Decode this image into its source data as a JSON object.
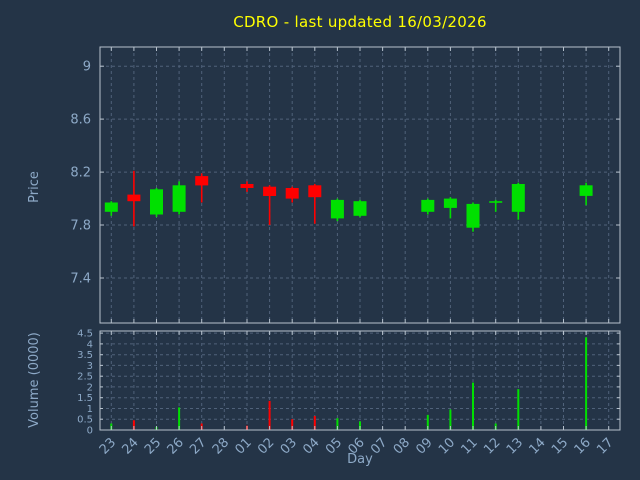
{
  "title": "CDRO - last updated 16/03/2026",
  "colors": {
    "background": "#243447",
    "title": "#ffff00",
    "axis_text": "#8da9c7",
    "grid": "#50627a",
    "border": "#b7c2cd",
    "up": "#00e000",
    "down": "#ff0000"
  },
  "chart_data": {
    "type": "candlestick",
    "title": "CDRO - last updated 16/03/2026",
    "xlabel": "Day",
    "grid": true,
    "legend": false,
    "price_axis": {
      "label": "Price",
      "min": 7.06,
      "max": 9.145,
      "ticks": [
        7.4,
        7.8,
        8.2,
        8.6,
        9
      ],
      "tick_labels": [
        "7.4",
        "7.8",
        "8.2",
        "8.6",
        "9"
      ]
    },
    "volume_axis": {
      "label": "Volume (0000)",
      "min": 0,
      "max": 4.5,
      "ticks": [
        0,
        0.5,
        1,
        1.5,
        2,
        2.5,
        3,
        3.5,
        4,
        4.5
      ],
      "tick_labels": [
        "0",
        "0.5",
        "1",
        "1.5",
        "2",
        "2.5",
        "3",
        "3.5",
        "4",
        "4.5"
      ]
    },
    "categories": [
      "23",
      "24",
      "25",
      "26",
      "27",
      "28",
      "01",
      "02",
      "03",
      "04",
      "05",
      "06",
      "07",
      "08",
      "09",
      "10",
      "11",
      "12",
      "13",
      "14",
      "15",
      "16",
      "17"
    ],
    "candles": [
      {
        "day": "23",
        "open": 7.9,
        "high": 7.98,
        "low": 7.87,
        "close": 7.97,
        "volume": 0.3
      },
      {
        "day": "24",
        "open": 8.03,
        "high": 8.21,
        "low": 7.79,
        "close": 7.98,
        "volume": 0.45
      },
      {
        "day": "25",
        "open": 7.88,
        "high": 8.08,
        "low": 7.86,
        "close": 8.07,
        "volume": 0.15
      },
      {
        "day": "26",
        "open": 7.9,
        "high": 8.13,
        "low": 7.88,
        "close": 8.1,
        "volume": 1.05
      },
      {
        "day": "27",
        "open": 8.17,
        "high": 8.19,
        "low": 7.97,
        "close": 8.1,
        "volume": 0.3
      },
      {
        "day": "28",
        "open": null,
        "high": null,
        "low": null,
        "close": null,
        "volume": null
      },
      {
        "day": "01",
        "open": 8.11,
        "high": 8.13,
        "low": 8.05,
        "close": 8.08,
        "volume": 0.2
      },
      {
        "day": "02",
        "open": 8.09,
        "high": 8.1,
        "low": 7.8,
        "close": 8.02,
        "volume": 1.35
      },
      {
        "day": "03",
        "open": 8.08,
        "high": 8.09,
        "low": 7.97,
        "close": 8.0,
        "volume": 0.5
      },
      {
        "day": "04",
        "open": 8.1,
        "high": 8.11,
        "low": 7.81,
        "close": 8.01,
        "volume": 0.65
      },
      {
        "day": "05",
        "open": 7.85,
        "high": 8.0,
        "low": 7.83,
        "close": 7.99,
        "volume": 0.55
      },
      {
        "day": "06",
        "open": 7.87,
        "high": 7.99,
        "low": 7.86,
        "close": 7.98,
        "volume": 0.4
      },
      {
        "day": "07",
        "open": null,
        "high": null,
        "low": null,
        "close": null,
        "volume": null
      },
      {
        "day": "08",
        "open": null,
        "high": null,
        "low": null,
        "close": null,
        "volume": null
      },
      {
        "day": "09",
        "open": 7.9,
        "high": 8.0,
        "low": 7.88,
        "close": 7.99,
        "volume": 0.7
      },
      {
        "day": "10",
        "open": 7.93,
        "high": 8.01,
        "low": 7.85,
        "close": 8.0,
        "volume": 0.95
      },
      {
        "day": "11",
        "open": 7.78,
        "high": 7.97,
        "low": 7.75,
        "close": 7.96,
        "volume": 2.2
      },
      {
        "day": "12",
        "open": 7.97,
        "high": 7.99,
        "low": 7.9,
        "close": 7.98,
        "volume": 0.3
      },
      {
        "day": "13",
        "open": 7.9,
        "high": 8.12,
        "low": 7.84,
        "close": 8.11,
        "volume": 1.9
      },
      {
        "day": "14",
        "open": null,
        "high": null,
        "low": null,
        "close": null,
        "volume": null
      },
      {
        "day": "15",
        "open": null,
        "high": null,
        "low": null,
        "close": null,
        "volume": null
      },
      {
        "day": "16",
        "open": 8.02,
        "high": 8.12,
        "low": 7.95,
        "close": 8.1,
        "volume": 4.3
      },
      {
        "day": "17",
        "open": null,
        "high": null,
        "low": null,
        "close": null,
        "volume": null
      }
    ]
  }
}
